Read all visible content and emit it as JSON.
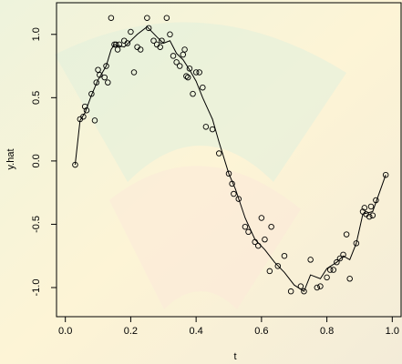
{
  "chart_data": {
    "type": "scatter",
    "xlabel": "t",
    "ylabel": "y.hat",
    "xlim": [
      -0.027,
      1.027
    ],
    "ylim": [
      -1.23,
      1.25
    ],
    "xticks": [
      {
        "value": 0,
        "label": "0.0"
      },
      0.2,
      0.4,
      0.6,
      0.8,
      {
        "value": 1,
        "label": "1.0"
      }
    ],
    "yticks": [
      {
        "value": -1,
        "label": "-1.0"
      },
      -0.5,
      {
        "value": 0,
        "label": "0.0"
      },
      0.5,
      {
        "value": 1,
        "label": "1.0"
      }
    ],
    "series": [
      {
        "type": "points",
        "color": "#000000",
        "x": [
          0.03,
          0.045,
          0.055,
          0.06,
          0.065,
          0.08,
          0.09,
          0.095,
          0.1,
          0.105,
          0.12,
          0.125,
          0.13,
          0.14,
          0.15,
          0.155,
          0.16,
          0.165,
          0.18,
          0.19,
          0.2,
          0.21,
          0.22,
          0.23,
          0.25,
          0.255,
          0.27,
          0.28,
          0.29,
          0.295,
          0.31,
          0.32,
          0.33,
          0.34,
          0.35,
          0.36,
          0.365,
          0.37,
          0.375,
          0.38,
          0.39,
          0.4,
          0.41,
          0.42,
          0.43,
          0.45,
          0.47,
          0.5,
          0.51,
          0.515,
          0.53,
          0.55,
          0.56,
          0.58,
          0.59,
          0.6,
          0.61,
          0.625,
          0.63,
          0.65,
          0.67,
          0.69,
          0.72,
          0.73,
          0.75,
          0.77,
          0.78,
          0.8,
          0.81,
          0.82,
          0.83,
          0.84,
          0.85,
          0.86,
          0.87,
          0.89,
          0.91,
          0.915,
          0.92,
          0.93,
          0.935,
          0.94,
          0.95,
          0.98
        ],
        "values": [
          -0.03,
          0.33,
          0.35,
          0.43,
          0.4,
          0.53,
          0.32,
          0.62,
          0.72,
          0.68,
          0.66,
          0.75,
          0.62,
          1.13,
          0.92,
          0.92,
          0.88,
          0.92,
          0.95,
          0.93,
          1.02,
          0.7,
          0.9,
          0.88,
          1.13,
          1.05,
          0.95,
          0.92,
          0.9,
          0.95,
          1.13,
          1.0,
          0.83,
          0.78,
          0.75,
          0.84,
          0.88,
          0.67,
          0.66,
          0.73,
          0.53,
          0.7,
          0.7,
          0.58,
          0.27,
          0.25,
          0.06,
          -0.1,
          -0.18,
          -0.26,
          -0.3,
          -0.52,
          -0.56,
          -0.64,
          -0.67,
          -0.45,
          -0.62,
          -0.87,
          -0.52,
          -0.83,
          -0.75,
          -1.03,
          -0.99,
          -1.03,
          -0.78,
          -1.0,
          -0.99,
          -0.92,
          -0.86,
          -0.86,
          -0.8,
          -0.77,
          -0.74,
          -0.58,
          -0.93,
          -0.65,
          -0.4,
          -0.37,
          -0.42,
          -0.44,
          -0.36,
          -0.43,
          -0.31,
          -0.11
        ]
      },
      {
        "type": "line",
        "color": "#000000",
        "x": [
          0.03,
          0.045,
          0.06,
          0.08,
          0.1,
          0.125,
          0.14,
          0.15,
          0.18,
          0.2,
          0.22,
          0.25,
          0.28,
          0.3,
          0.32,
          0.34,
          0.36,
          0.38,
          0.4,
          0.42,
          0.45,
          0.47,
          0.5,
          0.52,
          0.55,
          0.58,
          0.61,
          0.64,
          0.67,
          0.7,
          0.73,
          0.75,
          0.78,
          0.8,
          0.83,
          0.85,
          0.87,
          0.89,
          0.91,
          0.94,
          0.98
        ],
        "values": [
          -0.03,
          0.32,
          0.38,
          0.52,
          0.64,
          0.75,
          0.88,
          0.92,
          0.9,
          0.95,
          1.0,
          1.06,
          0.98,
          0.93,
          0.95,
          0.85,
          0.8,
          0.72,
          0.63,
          0.5,
          0.33,
          0.15,
          -0.1,
          -0.22,
          -0.45,
          -0.62,
          -0.7,
          -0.8,
          -0.88,
          -0.98,
          -1.03,
          -0.9,
          -0.93,
          -0.85,
          -0.8,
          -0.75,
          -0.78,
          -0.65,
          -0.42,
          -0.4,
          -0.11
        ]
      }
    ]
  }
}
